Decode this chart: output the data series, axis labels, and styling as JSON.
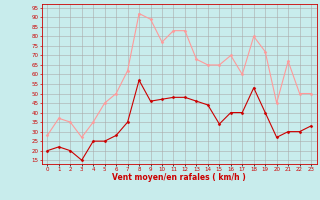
{
  "hours": [
    0,
    1,
    2,
    3,
    4,
    5,
    6,
    7,
    8,
    9,
    10,
    11,
    12,
    13,
    14,
    15,
    16,
    17,
    18,
    19,
    20,
    21,
    22,
    23
  ],
  "wind_avg": [
    20,
    22,
    20,
    15,
    25,
    25,
    28,
    35,
    57,
    46,
    47,
    48,
    48,
    46,
    44,
    34,
    40,
    40,
    53,
    40,
    27,
    30,
    30,
    33
  ],
  "wind_gust": [
    28,
    37,
    35,
    27,
    35,
    45,
    50,
    62,
    92,
    89,
    77,
    83,
    83,
    68,
    65,
    65,
    70,
    60,
    80,
    72,
    45,
    67,
    50,
    50
  ],
  "line_avg_color": "#cc0000",
  "line_gust_color": "#ff9999",
  "marker": "D",
  "marker_size": 1.5,
  "bg_color": "#c8ecec",
  "grid_color": "#aaaaaa",
  "xlabel": "Vent moyen/en rafales ( km/h )",
  "xlabel_color": "#cc0000",
  "tick_color": "#cc0000",
  "ylabel_ticks": [
    15,
    20,
    25,
    30,
    35,
    40,
    45,
    50,
    55,
    60,
    65,
    70,
    75,
    80,
    85,
    90,
    95
  ],
  "ylim": [
    13,
    97
  ],
  "xlim": [
    -0.5,
    23.5
  ],
  "line_width": 0.8,
  "figwidth": 3.2,
  "figheight": 2.0,
  "dpi": 100
}
